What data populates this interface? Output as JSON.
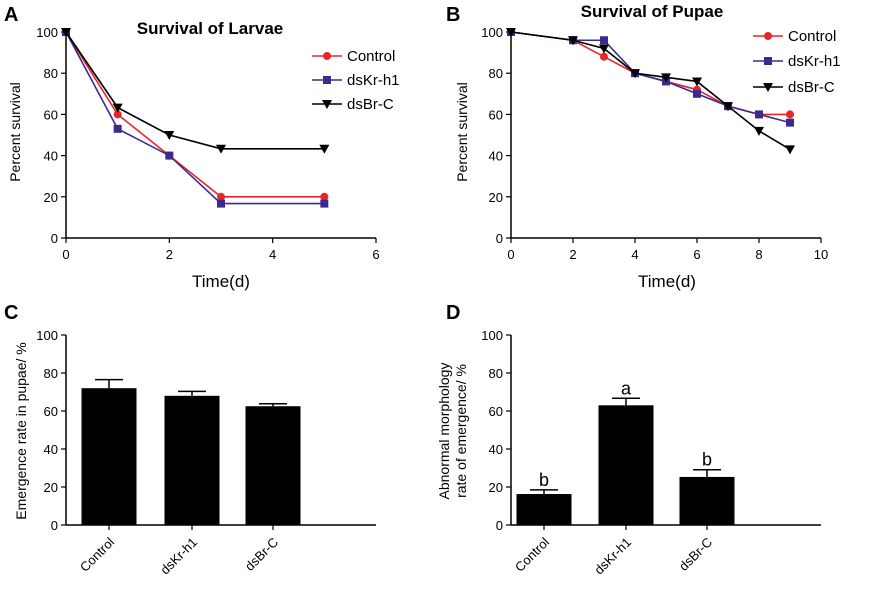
{
  "panels": {
    "A": {
      "label": "A"
    },
    "B": {
      "label": "B"
    },
    "C": {
      "label": "C"
    },
    "D": {
      "label": "D"
    }
  },
  "legend": {
    "control": "Control",
    "dskr": "dsKr-h1",
    "dsbr": "dsBr-C"
  },
  "colors": {
    "control": "#e8262a",
    "dskr": "#3d2a8e",
    "dsbr": "#000000",
    "bar": "#000000"
  },
  "chart_data": [
    {
      "id": "A",
      "type": "line",
      "title": "Survival of Larvae",
      "xlabel": "Time(d)",
      "ylabel": "Percent survival",
      "xlim": [
        0,
        6
      ],
      "ylim": [
        0,
        100
      ],
      "xticks": [
        0,
        2,
        4,
        6
      ],
      "yticks": [
        0,
        20,
        40,
        60,
        80,
        100
      ],
      "series": [
        {
          "name": "Control",
          "key": "control",
          "marker": "circle",
          "x": [
            0,
            1,
            2,
            3,
            5
          ],
          "y": [
            100,
            60,
            40,
            20,
            20
          ]
        },
        {
          "name": "dsKr-h1",
          "key": "dskr",
          "marker": "square",
          "x": [
            0,
            1,
            2,
            3,
            5
          ],
          "y": [
            100,
            53,
            40,
            16.7,
            16.7
          ]
        },
        {
          "name": "dsBr-C",
          "key": "dsbr",
          "marker": "triangle-down",
          "x": [
            0,
            1,
            2,
            3,
            5
          ],
          "y": [
            100,
            63.3,
            50,
            43.3,
            43.3
          ]
        }
      ]
    },
    {
      "id": "B",
      "type": "line",
      "title": "Survival of Pupae",
      "xlabel": "Time(d)",
      "ylabel": "Percent survival",
      "xlim": [
        0,
        10
      ],
      "ylim": [
        0,
        100
      ],
      "xticks": [
        0,
        2,
        4,
        6,
        8,
        10
      ],
      "yticks": [
        0,
        20,
        40,
        60,
        80,
        100
      ],
      "series": [
        {
          "name": "Control",
          "key": "control",
          "marker": "circle",
          "x": [
            0,
            2,
            3,
            4,
            5,
            6,
            7,
            8,
            9
          ],
          "y": [
            100,
            96,
            88,
            80,
            76,
            72,
            64,
            60,
            60
          ]
        },
        {
          "name": "dsKr-h1",
          "key": "dskr",
          "marker": "square",
          "x": [
            0,
            2,
            3,
            4,
            5,
            6,
            7,
            8,
            9
          ],
          "y": [
            100,
            96,
            96,
            80,
            76,
            70,
            64,
            60,
            56
          ]
        },
        {
          "name": "dsBr-C",
          "key": "dsbr",
          "marker": "triangle-down",
          "x": [
            0,
            2,
            3,
            4,
            5,
            6,
            7,
            8,
            9
          ],
          "y": [
            100,
            96,
            92,
            80,
            78,
            76,
            64,
            52,
            43
          ]
        }
      ]
    },
    {
      "id": "C",
      "type": "bar",
      "title": "",
      "xlabel": "",
      "ylabel": "Emergence rate in pupae/ %",
      "ylim": [
        0,
        100
      ],
      "yticks": [
        0,
        20,
        40,
        60,
        80,
        100
      ],
      "categories": [
        "Control",
        "dsKr-h1",
        "dsBr-C"
      ],
      "values": [
        72,
        68,
        62.5
      ],
      "errors": [
        4.5,
        2.3,
        1.3
      ]
    },
    {
      "id": "D",
      "type": "bar",
      "title": "",
      "xlabel": "",
      "ylabel_lines": [
        "Abnormal morphology",
        "rate of emergence/ %"
      ],
      "ylim": [
        0,
        100
      ],
      "yticks": [
        0,
        20,
        40,
        60,
        80,
        100
      ],
      "categories": [
        "Control",
        "dsKr-h1",
        "dsBr-C"
      ],
      "values": [
        16.3,
        63,
        25.3
      ],
      "errors": [
        2.2,
        3.7,
        3.8
      ],
      "annotations": [
        "b",
        "a",
        "b"
      ]
    }
  ]
}
